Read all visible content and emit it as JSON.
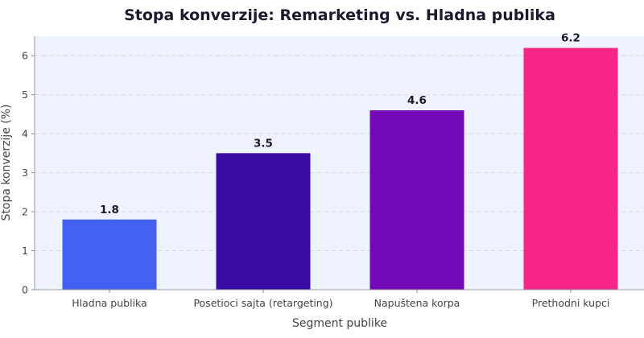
{
  "chart_data": {
    "type": "bar",
    "title": "Stopa konverzije: Remarketing vs. Hladna publika",
    "xlabel": "Segment publike",
    "ylabel": "Stopa konverzije (%)",
    "categories": [
      "Hladna publika",
      "Posetioci sajta (retargeting)",
      "Napuštena korpa",
      "Prethodni kupci"
    ],
    "values": [
      1.8,
      3.5,
      4.6,
      6.2
    ],
    "data_labels": [
      "1.8",
      "3.5",
      "4.6",
      "6.2"
    ],
    "colors": [
      "#4361ee",
      "#3a0ca3",
      "#7209b7",
      "#f72585"
    ],
    "y_ticks": [
      "0",
      "1",
      "2",
      "3",
      "4",
      "5",
      "6"
    ],
    "ylim": [
      0,
      6.5
    ],
    "grid": "horizontal-dashed",
    "legend": "none",
    "plot_background": "#eef3fe"
  }
}
